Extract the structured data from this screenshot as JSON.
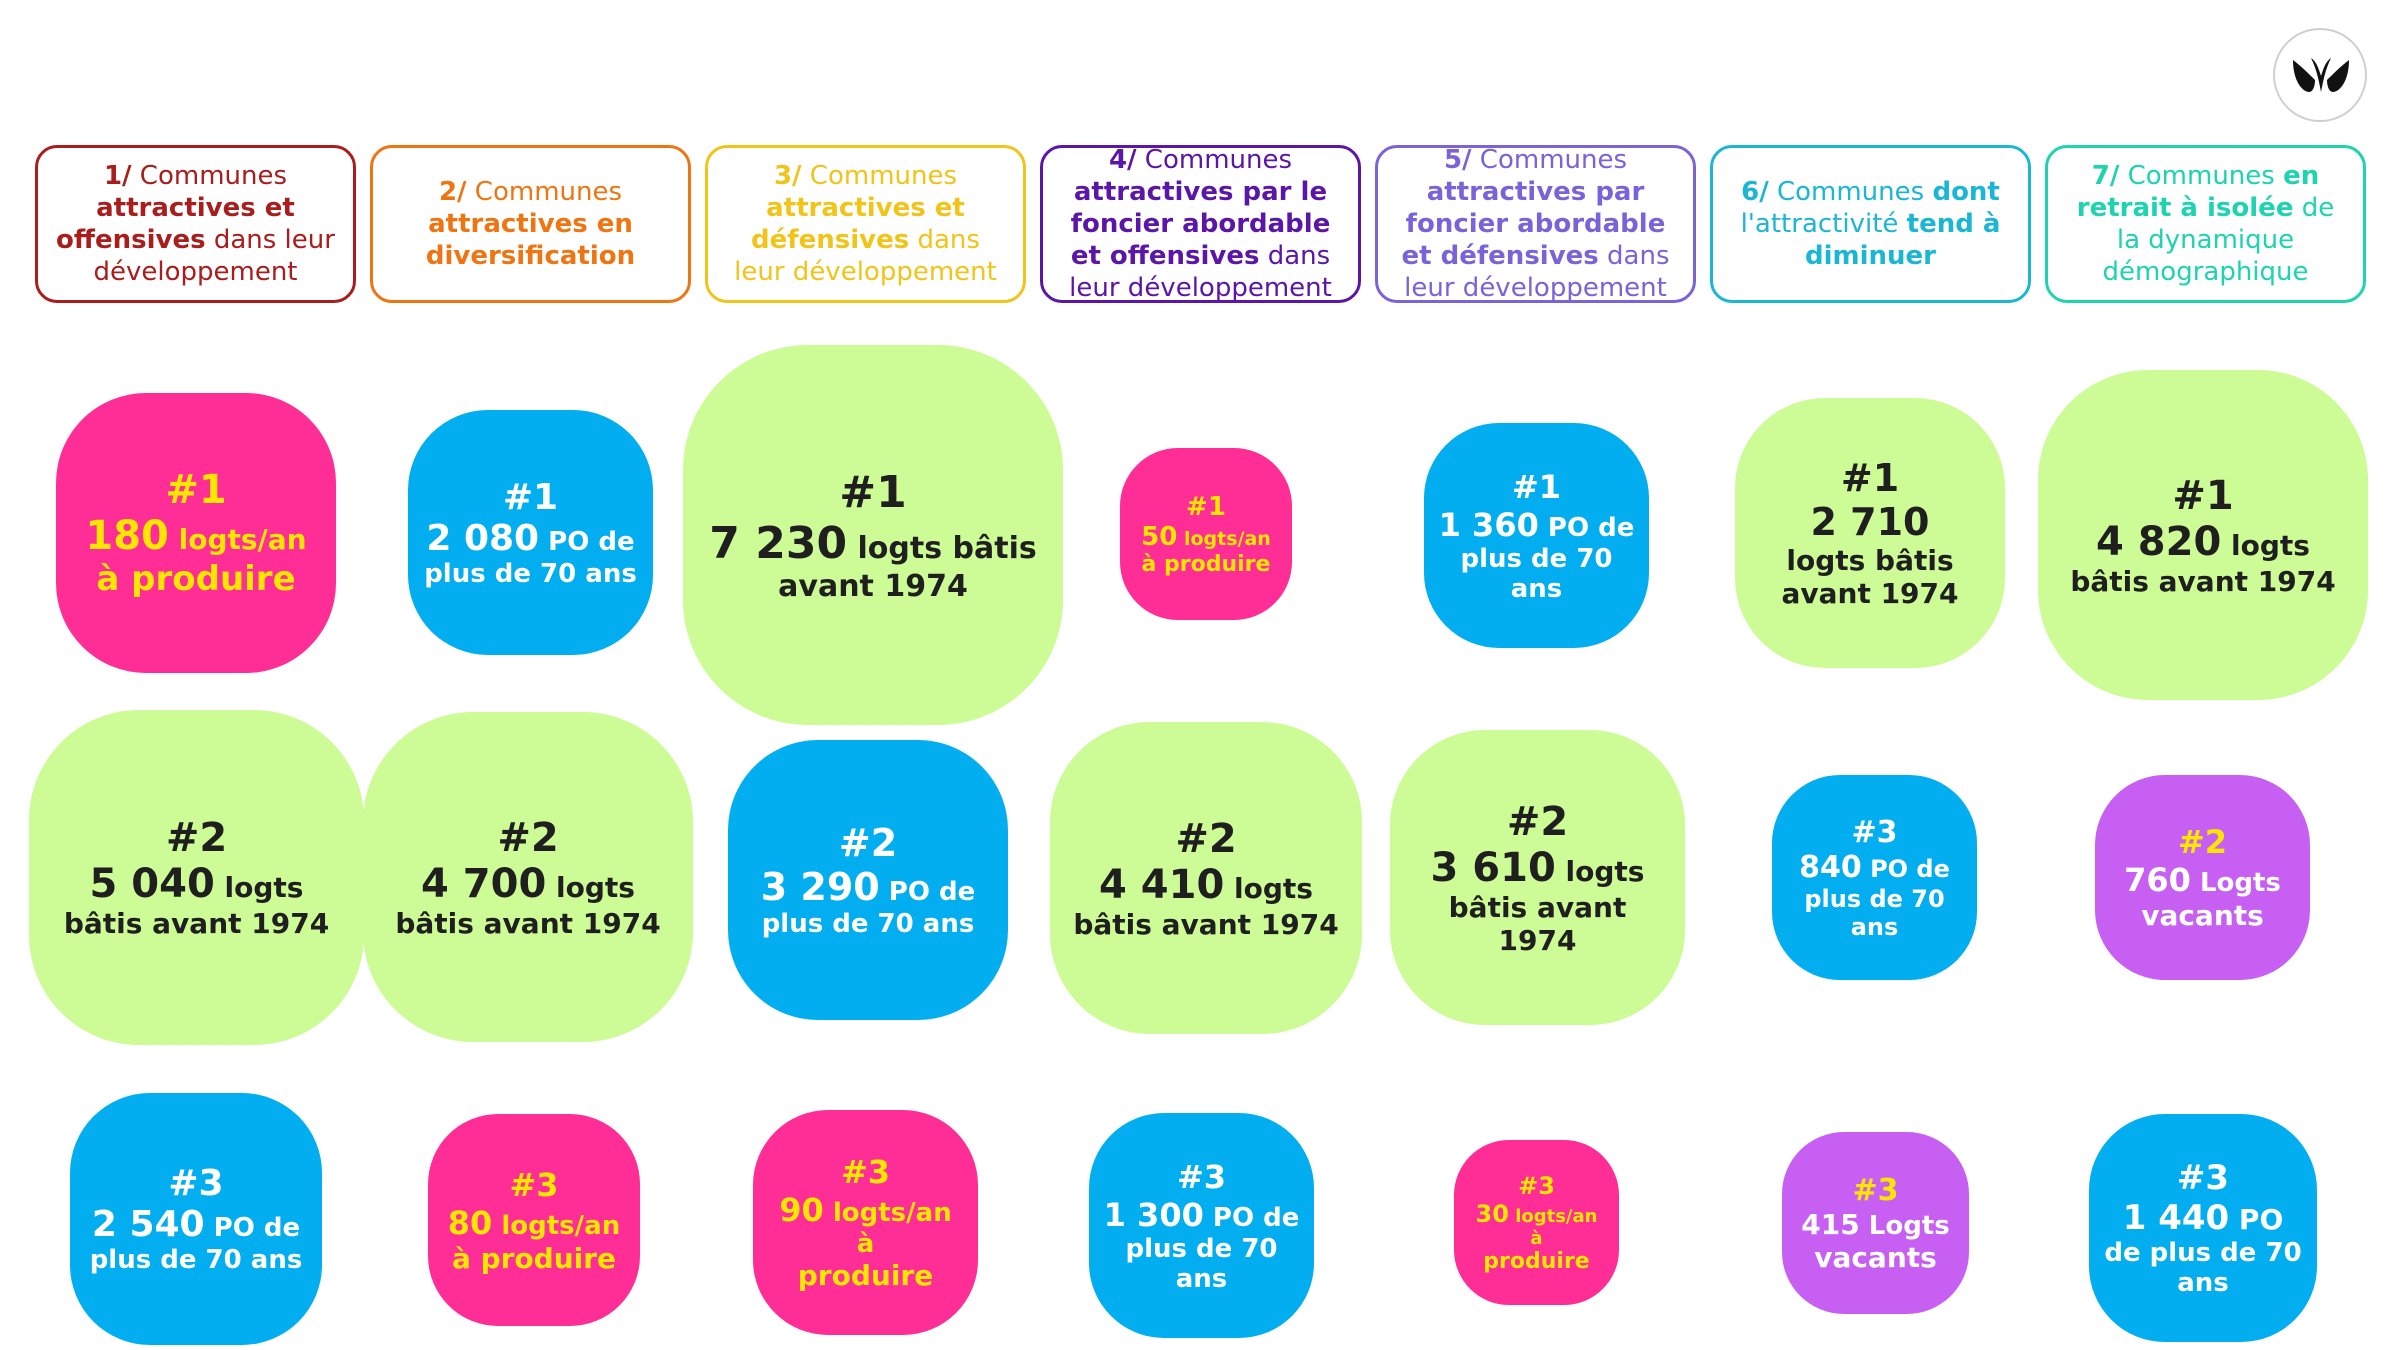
{
  "colors": {
    "green": "#cdfb96",
    "blue": "#02aeef",
    "pink": "#ff2d96",
    "purple": "#c65ff2",
    "header_colors": [
      "#a91d1d",
      "#ee7512",
      "#f0c419",
      "#5b16a8",
      "#7a63d8",
      "#1ab6d4",
      "#1dd3b0"
    ]
  },
  "headers": [
    {
      "num": "1/",
      "parts": [
        {
          "t": " Communes ",
          "b": false
        },
        {
          "t": "attractives et offensives",
          "b": true
        },
        {
          "t": " dans leur développement",
          "b": false
        }
      ]
    },
    {
      "num": "2/",
      "parts": [
        {
          "t": " Communes ",
          "b": false
        },
        {
          "t": "attractives en diversification",
          "b": true
        }
      ]
    },
    {
      "num": "3/",
      "parts": [
        {
          "t": " Communes ",
          "b": false
        },
        {
          "t": "attractives et défensives",
          "b": true
        },
        {
          "t": " dans leur développement",
          "b": false
        }
      ]
    },
    {
      "num": "4/",
      "parts": [
        {
          "t": " Communes ",
          "b": false
        },
        {
          "t": "attractives par le foncier abordable et offensives",
          "b": true
        },
        {
          "t": " dans leur développement",
          "b": false
        }
      ]
    },
    {
      "num": "5/",
      "parts": [
        {
          "t": " Communes ",
          "b": false
        },
        {
          "t": "attractives par foncier abordable et défensives",
          "b": true
        },
        {
          "t": " dans leur développement",
          "b": false
        }
      ]
    },
    {
      "num": "6/",
      "parts": [
        {
          "t": " Communes ",
          "b": false
        },
        {
          "t": "dont",
          "b": true
        },
        {
          "t": " l'attractivité ",
          "b": false
        },
        {
          "t": "tend à diminuer",
          "b": true
        }
      ]
    },
    {
      "num": "7/",
      "parts": [
        {
          "t": " Communes ",
          "b": false
        },
        {
          "t": "en retrait à isolée",
          "b": true
        },
        {
          "t": " de la dynamique démographique",
          "b": false
        }
      ]
    }
  ],
  "bubbles": [
    {
      "rank": "#1",
      "num": "180",
      "unit": " logts/an",
      "line2": "à produire",
      "color": "pink"
    },
    {
      "rank": "#2",
      "num": "5 040",
      "unit": " logts",
      "line2": "bâtis avant 1974",
      "color": "green"
    },
    {
      "rank": "#3",
      "num": "2 540",
      "unit": " PO de",
      "line2": "plus de 70 ans",
      "color": "blue"
    },
    {
      "rank": "#1",
      "num": "2 080",
      "unit": " PO de",
      "line2": "plus de 70 ans",
      "color": "blue"
    },
    {
      "rank": "#2",
      "num": "4 700",
      "unit": " logts",
      "line2": "bâtis avant 1974",
      "color": "green"
    },
    {
      "rank": "#3",
      "num": "80",
      "unit": " logts/an",
      "line2": "à produire",
      "color": "pink"
    },
    {
      "rank": "#1",
      "num": "7 230",
      "unit": " logts bâtis",
      "line2": "avant 1974",
      "color": "green"
    },
    {
      "rank": "#2",
      "num": "3 290",
      "unit": " PO de",
      "line2": "plus de 70 ans",
      "color": "blue"
    },
    {
      "rank": "#3",
      "num": "90",
      "unit": " logts/an à",
      "line2": "produire",
      "color": "pink"
    },
    {
      "rank": "#1",
      "num": "50",
      "unit": " logts/an",
      "line2": "à produire",
      "color": "pink"
    },
    {
      "rank": "#2",
      "num": "4 410",
      "unit": " logts",
      "line2": "bâtis avant 1974",
      "color": "green"
    },
    {
      "rank": "#3",
      "num": "1 300",
      "unit": " PO de",
      "line2": "plus de 70",
      "line3": "ans",
      "color": "blue"
    },
    {
      "rank": "#1",
      "num": "1 360",
      "unit": " PO de",
      "line2": "plus de 70",
      "line3": "ans",
      "color": "blue"
    },
    {
      "rank": "#2",
      "num": "3 610",
      "unit": " logts",
      "line2": "bâtis avant",
      "line3": "1974",
      "color": "green"
    },
    {
      "rank": "#3",
      "num": "30",
      "unit": " logts/an à",
      "line2": "produire",
      "color": "pink"
    },
    {
      "rank": "#1",
      "num": "2 710",
      "unit": "",
      "line2": "logts bâtis",
      "line3": "avant 1974",
      "color": "green"
    },
    {
      "rank": "#3",
      "num": "840",
      "unit": " PO de",
      "line2": "plus de 70",
      "line3": "ans",
      "color": "blue"
    },
    {
      "rank": "#3",
      "num": "415",
      "unit": " Logts",
      "line2": "vacants",
      "color": "purple"
    },
    {
      "rank": "#1",
      "num": "4 820",
      "unit": " logts",
      "line2": "bâtis avant 1974",
      "color": "green"
    },
    {
      "rank": "#2",
      "num": "760",
      "unit": " Logts",
      "line2": "vacants",
      "color": "purple"
    },
    {
      "rank": "#3",
      "num": "1 440",
      "unit": " PO",
      "line2": "de plus de 70",
      "line3": "ans",
      "color": "blue"
    }
  ]
}
